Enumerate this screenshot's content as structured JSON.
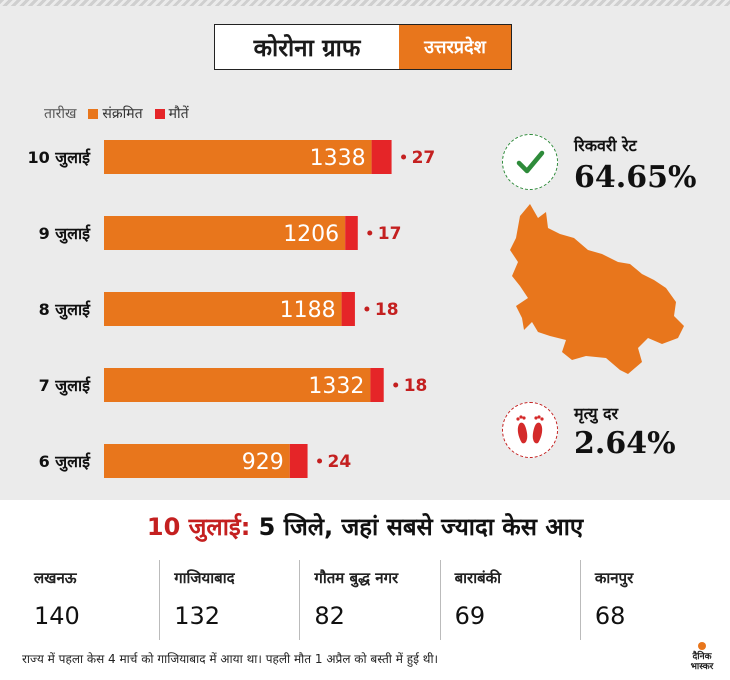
{
  "title": {
    "main": "कोरोना ग्राफ",
    "state": "उत्तरप्रदेश"
  },
  "legend": {
    "date_header": "तारीख",
    "infected": "संक्रमित",
    "deaths": "मौतें"
  },
  "colors": {
    "infected": "#e8761c",
    "deaths": "#e52528",
    "accent_red": "#c42020"
  },
  "chart_data": {
    "type": "bar",
    "orientation": "horizontal",
    "stacked": true,
    "categories": [
      "10 जुलाई",
      "9 जुलाई",
      "8 जुलाई",
      "7 जुलाई",
      "6 जुलाई"
    ],
    "series": [
      {
        "name": "संक्रमित",
        "values": [
          1338,
          1206,
          1188,
          1332,
          929
        ]
      },
      {
        "name": "मौतें",
        "values": [
          27,
          17,
          18,
          18,
          24
        ]
      }
    ]
  },
  "stats": {
    "recovery_label": "रिकवरी रेट",
    "recovery_value": "64.65%",
    "mortality_label": "मृत्यु दर",
    "mortality_value": "2.64%"
  },
  "headline": {
    "date": "10 जुलाई:",
    "text": "5 जिले, जहां सबसे ज्यादा केस आए"
  },
  "districts": [
    {
      "name": "लखनऊ",
      "value": "140"
    },
    {
      "name": "गाजियाबाद",
      "value": "132"
    },
    {
      "name": "गौतम बुद्ध नगर",
      "value": "82"
    },
    {
      "name": "बाराबंकी",
      "value": "69"
    },
    {
      "name": "कानपुर",
      "value": "68"
    }
  ],
  "footnote": "राज्य में पहला केस 4 मार्च को गाजियाबाद में आया था। पहली मौत 1 अप्रैल को बस्ती में हुई थी।",
  "logo": {
    "line1": "दैनिक",
    "line2": "भास्कर"
  }
}
